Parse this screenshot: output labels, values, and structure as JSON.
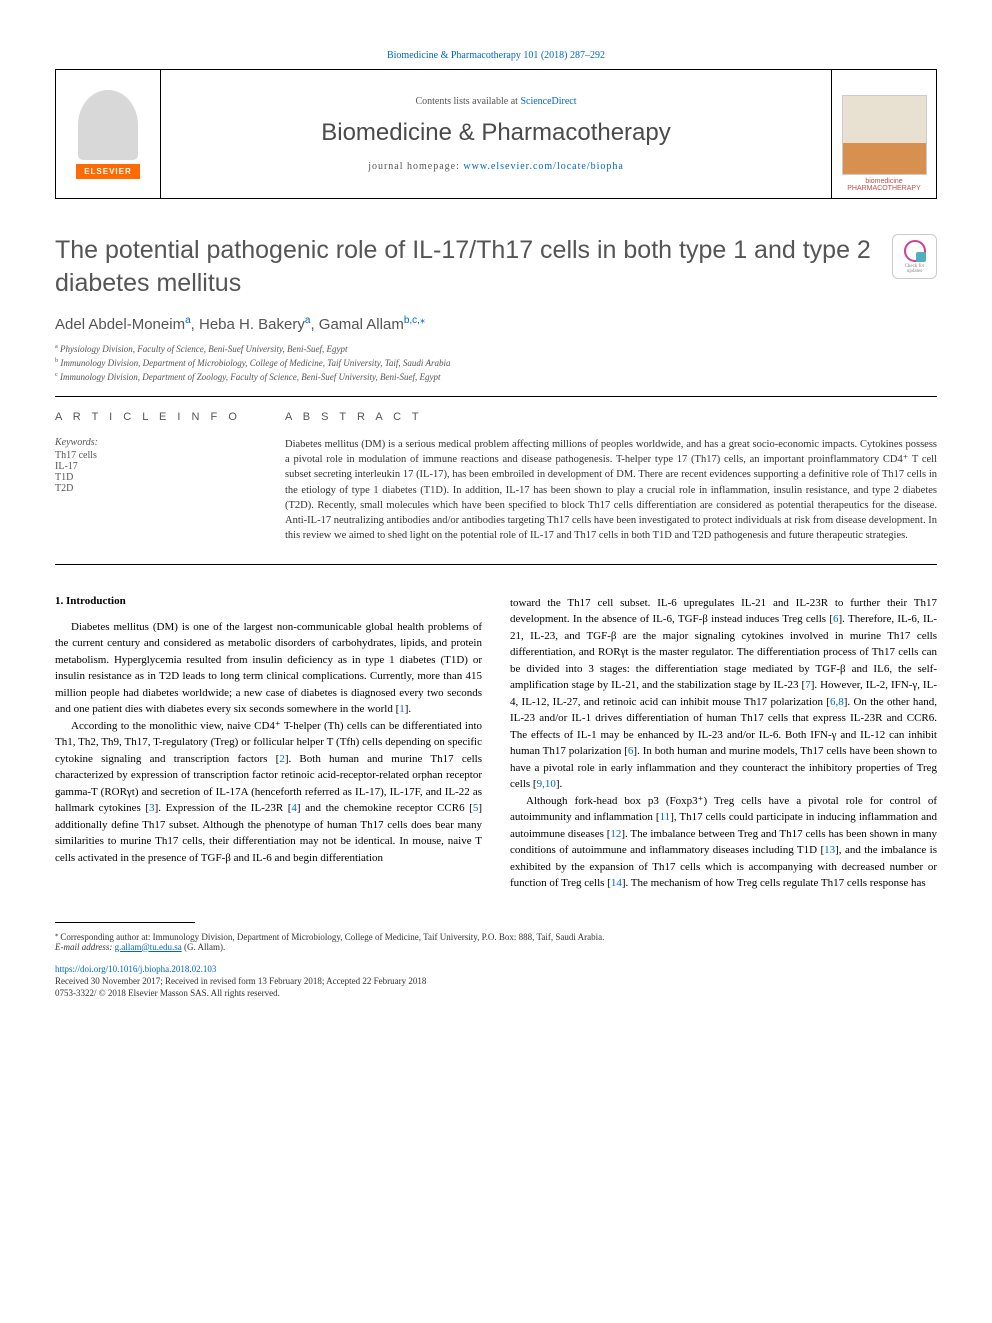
{
  "header": {
    "top_citation": "Biomedicine & Pharmacotherapy 101 (2018) 287–292",
    "contents_prefix": "Contents lists available at ",
    "contents_link": "ScienceDirect",
    "journal_name": "Biomedicine & Pharmacotherapy",
    "homepage_prefix": "journal homepage: ",
    "homepage_url": "www.elsevier.com/locate/biopha",
    "elsevier_wordmark": "ELSEVIER",
    "cover_caption_top": "biomedicine",
    "cover_caption_bottom": "PHARMACOTHERAPY"
  },
  "check_updates": {
    "line1": "Check for",
    "line2": "updates"
  },
  "article": {
    "title": "The potential pathogenic role of IL-17/Th17 cells in both type 1 and type 2 diabetes mellitus",
    "authors_html": "Adel Abdel-Moneim",
    "author1": "Adel Abdel-Moneim",
    "author1_sup": "a",
    "sep1": ", ",
    "author2": "Heba H. Bakery",
    "author2_sup": "a",
    "sep2": ", ",
    "author3": "Gamal Allam",
    "author3_sup": "b,c,",
    "author3_star": "⁎"
  },
  "affiliations": [
    {
      "sup": "a",
      "text": " Physiology Division, Faculty of Science, Beni-Suef University, Beni-Suef, Egypt"
    },
    {
      "sup": "b",
      "text": " Immunology Division, Department of Microbiology, College of Medicine, Taif University, Taif, Saudi Arabia"
    },
    {
      "sup": "c",
      "text": " Immunology Division, Department of Zoology, Faculty of Science, Beni-Suef University, Beni-Suef, Egypt"
    }
  ],
  "info": {
    "heading": "A R T I C L E  I N F O",
    "keywords_label": "Keywords:",
    "keywords": [
      "Th17 cells",
      "IL-17",
      "T1D",
      "T2D"
    ]
  },
  "abstract": {
    "heading": "A B S T R A C T",
    "text": "Diabetes mellitus (DM) is a serious medical problem affecting millions of peoples worldwide, and has a great socio-economic impacts. Cytokines possess a pivotal role in modulation of immune reactions and disease pathogenesis. T-helper type 17 (Th17) cells, an important proinflammatory CD4⁺ T cell subset secreting interleukin 17 (IL-17), has been embroiled in development of DM. There are recent evidences supporting a definitive role of Th17 cells in the etiology of type 1 diabetes (T1D). In addition, IL-17 has been shown to play a crucial role in inflammation, insulin resistance, and type 2 diabetes (T2D). Recently, small molecules which have been specified to block Th17 cells differentiation are considered as potential therapeutics for the disease. Anti-IL-17 neutralizing antibodies and/or antibodies targeting Th17 cells have been investigated to protect individuals at risk from disease development. In this review we aimed to shed light on the potential role of IL-17 and Th17 cells in both T1D and T2D pathogenesis and future therapeutic strategies."
  },
  "body": {
    "intro_heading": "1. Introduction",
    "left_col": [
      "Diabetes mellitus (DM) is one of the largest non-communicable global health problems of the current century and considered as metabolic disorders of carbohydrates, lipids, and protein metabolism. Hyperglycemia resulted from insulin deficiency as in type 1 diabetes (T1D) or insulin resistance as in T2D leads to long term clinical complications. Currently, more than 415 million people had diabetes worldwide; a new case of diabetes is diagnosed every two seconds and one patient dies with diabetes every six seconds somewhere in the world [1].",
      "According to the monolithic view, naive CD4⁺ T-helper (Th) cells can be differentiated into Th1, Th2, Th9, Th17, T-regulatory (Treg) or follicular helper T (Tfh) cells depending on specific cytokine signaling and transcription factors [2]. Both human and murine Th17 cells characterized by expression of transcription factor retinoic acid-receptor-related orphan receptor gamma-T (RORγt) and secretion of IL-17A (henceforth referred as IL-17), IL-17F, and IL-22 as hallmark cytokines [3]. Expression of the IL-23R [4] and the chemokine receptor CCR6 [5] additionally define Th17 subset. Although the phenotype of human Th17 cells does bear many similarities to murine Th17 cells, their differentiation may not be identical. In mouse, naive T cells activated in the presence of TGF-β and IL-6 and begin differentiation"
    ],
    "right_col": [
      "toward the Th17 cell subset. IL-6 upregulates IL-21 and IL-23R to further their Th17 development. In the absence of IL-6, TGF-β instead induces Treg cells [6]. Therefore, IL-6, IL-21, IL-23, and TGF-β are the major signaling cytokines involved in murine Th17 cells differentiation, and RORγt is the master regulator. The differentiation process of Th17 cells can be divided into 3 stages: the differentiation stage mediated by TGF-β and IL6, the self-amplification stage by IL-21, and the stabilization stage by IL-23 [7]. However, IL-2, IFN-γ, IL-4, IL-12, IL-27, and retinoic acid can inhibit mouse Th17 polarization [6,8]. On the other hand, IL-23 and/or IL-1 drives differentiation of human Th17 cells that express IL-23R and CCR6. The effects of IL-1 may be enhanced by IL-23 and/or IL-6. Both IFN-γ and IL-12 can inhibit human Th17 polarization [6]. In both human and murine models, Th17 cells have been shown to have a pivotal role in early inflammation and they counteract the inhibitory properties of Treg cells [9,10].",
      "Although fork-head box p3 (Foxp3⁺) Treg cells have a pivotal role for control of autoimmunity and inflammation [11], Th17 cells could participate in inducing inflammation and autoimmune diseases [12]. The imbalance between Treg and Th17 cells has been shown in many conditions of autoimmune and inflammatory diseases including T1D [13], and the imbalance is exhibited by the expansion of Th17 cells which is accompanying with decreased number or function of Treg cells [14]. The mechanism of how Treg cells regulate Th17 cells response has"
    ]
  },
  "footer": {
    "corresponding_marker": "⁎",
    "corresponding_text": " Corresponding author at: Immunology Division, Department of Microbiology, College of Medicine, Taif University, P.O. Box: 888, Taif, Saudi Arabia.",
    "email_label": "E-mail address: ",
    "email": "g.allam@tu.edu.sa",
    "email_suffix": " (G. Allam).",
    "doi": "https://doi.org/10.1016/j.biopha.2018.02.103",
    "received": "Received 30 November 2017; Received in revised form 13 February 2018; Accepted 22 February 2018",
    "copyright": "0753-3322/ © 2018 Elsevier Masson SAS. All rights reserved."
  },
  "colors": {
    "link": "#0066cc",
    "text": "#333333",
    "heading_gray": "#555555",
    "elsevier_orange": "#ff6b00",
    "border": "#000000"
  },
  "typography": {
    "title_fontsize": 25,
    "journal_fontsize": 24,
    "body_fontsize": 11,
    "abstract_fontsize": 10.5,
    "small_fontsize": 9
  }
}
